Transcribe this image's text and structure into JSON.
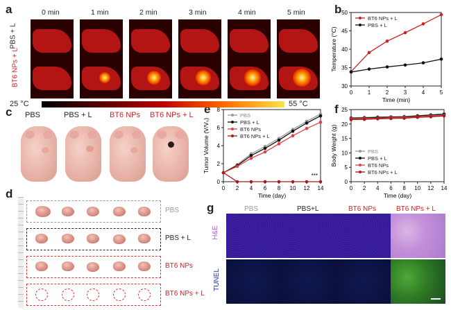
{
  "panel_labels": [
    "a",
    "b",
    "c",
    "d",
    "e",
    "f",
    "g"
  ],
  "panel_a": {
    "time_labels": [
      "0 min",
      "1 min",
      "2 min",
      "3 min",
      "4 min",
      "5 min"
    ],
    "row_labels": [
      "PBS + L",
      "BT6 NPs + L"
    ],
    "scale_min": "25 °C",
    "scale_max": "55 °C",
    "colors": {
      "hot": "#fff6a0",
      "mid": "#e12a00",
      "cold": "#000000"
    }
  },
  "panel_c": {
    "labels": [
      "PBS",
      "PBS + L",
      "BT6 NPs",
      "BT6 NPs + L"
    ],
    "label_colors": [
      "#999999",
      "#222222",
      "#cc2222",
      "#cc2222"
    ]
  },
  "panel_d": {
    "groups": [
      "PBS",
      "PBS + L",
      "BT6 NPs",
      "BT6 NPs + L"
    ],
    "group_colors": [
      "#999999",
      "#222222",
      "#cc2222",
      "#cc2222"
    ]
  },
  "panel_g": {
    "columns": [
      "PBS",
      "PBS+L",
      "BT6 NPs",
      "BT6 NPs + L"
    ],
    "column_colors": [
      "#999999",
      "#222222",
      "#cc2222",
      "#cc2222"
    ],
    "rows": [
      "H&E",
      "TUNEL"
    ],
    "row_colors": [
      "#b865d6",
      "#2233aa"
    ]
  },
  "chart_data": [
    {
      "id": "b",
      "type": "line",
      "xlabel": "Time (min)",
      "ylabel": "Temperature (°C)",
      "x": [
        0,
        1,
        2,
        3,
        4,
        5
      ],
      "xlim": [
        0,
        5
      ],
      "ylim": [
        30,
        50
      ],
      "yticks": [
        30,
        35,
        40,
        45,
        50
      ],
      "legend_position": "top-left",
      "series": [
        {
          "name": "BT6 NPs + L",
          "color": "#cc2222",
          "values": [
            33.9,
            39.1,
            42.2,
            44.5,
            46.9,
            49.4
          ]
        },
        {
          "name": "PBS + L",
          "color": "#111111",
          "values": [
            33.8,
            34.6,
            35.2,
            35.7,
            36.3,
            37.3
          ]
        }
      ]
    },
    {
      "id": "e",
      "type": "line",
      "xlabel": "Time (day)",
      "ylabel": "Tumor Volume (V/V₀)",
      "x": [
        0,
        2,
        4,
        6,
        8,
        10,
        12,
        14
      ],
      "xlim": [
        0,
        14
      ],
      "ylim": [
        0,
        8
      ],
      "yticks": [
        0,
        2,
        4,
        6,
        8
      ],
      "annotation": "***",
      "legend_position": "top-left",
      "series": [
        {
          "name": "PBS",
          "color": "#999999",
          "values": [
            1,
            1.9,
            3.1,
            3.9,
            4.8,
            5.8,
            6.7,
            7.5
          ]
        },
        {
          "name": "PBS + L",
          "color": "#111111",
          "values": [
            1,
            1.8,
            2.9,
            3.7,
            4.6,
            5.6,
            6.5,
            7.3
          ]
        },
        {
          "name": "BT6 NPs",
          "color": "#e04040",
          "values": [
            1,
            1.7,
            2.6,
            3.3,
            4.2,
            5.1,
            5.9,
            6.6
          ]
        },
        {
          "name": "BT6 NPs + L",
          "color": "#aa1a1a",
          "values": [
            1,
            0,
            0,
            0,
            0,
            0,
            0,
            0
          ]
        }
      ]
    },
    {
      "id": "f",
      "type": "line",
      "xlabel": "Time (day)",
      "ylabel": "Body Weight (g)",
      "x": [
        0,
        2,
        4,
        6,
        8,
        10,
        12,
        14
      ],
      "xlim": [
        0,
        14
      ],
      "ylim": [
        0,
        25
      ],
      "yticks": [
        0,
        5,
        10,
        15,
        20,
        25
      ],
      "legend_position": "bottom-left",
      "series": [
        {
          "name": "PBS",
          "color": "#999999",
          "values": [
            22.2,
            22.3,
            22.4,
            22.5,
            22.6,
            22.9,
            23.2,
            23.5
          ]
        },
        {
          "name": "PBS + L",
          "color": "#111111",
          "values": [
            22.0,
            22.1,
            22.3,
            22.4,
            22.5,
            22.8,
            23.1,
            23.4
          ]
        },
        {
          "name": "BT6 NPs",
          "color": "#e04040",
          "values": [
            21.8,
            21.9,
            22.0,
            22.2,
            22.3,
            22.5,
            22.8,
            23.0
          ]
        },
        {
          "name": "BT6 NPs + L",
          "color": "#aa1a1a",
          "values": [
            21.5,
            21.6,
            21.8,
            21.9,
            22.0,
            22.3,
            22.5,
            22.8
          ]
        }
      ]
    }
  ]
}
